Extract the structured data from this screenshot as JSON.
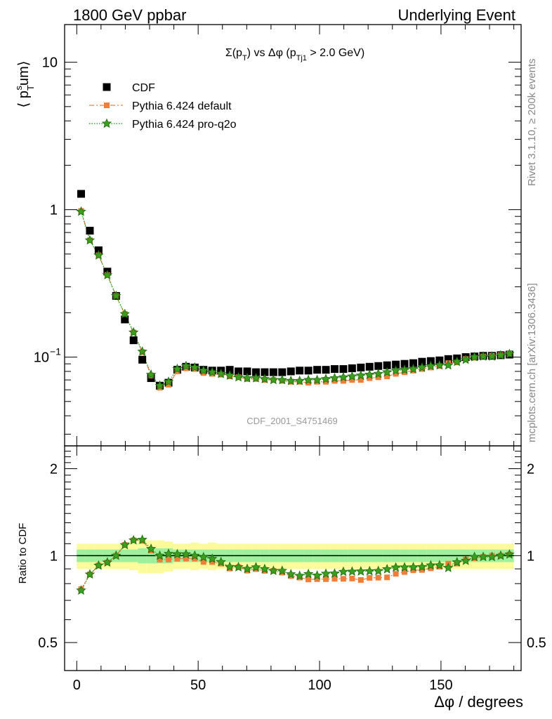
{
  "header": {
    "left": "1800 GeV ppbar",
    "right": "Underlying Event"
  },
  "side_labels": {
    "rivet": "Rivet 3.1.10, ≥ 200k events",
    "mcplots": "mcplots.cern.ch [arXiv:1306.3436]"
  },
  "watermark": "CDF_2001_S4751469",
  "chart_data": {
    "type": "scatter",
    "title": "Σ(pₜ) vs Δφ (pₜⱼ₁ > 2.0 GeV)",
    "title_parts": {
      "a": "Σ(p",
      "a_sub": "T",
      "b": ") vs Δφ (p",
      "b_sub": "Tj1",
      "c": " > 2.0 GeV)"
    },
    "xlabel": "Δφ / degrees",
    "ylabel": "⟨ pₜˢum⟩",
    "ylabel_parts": {
      "open": "⟨ p",
      "sub": "T",
      "sup": "s",
      "rest": "um⟩"
    },
    "ratio_ylabel": "Ratio to CDF",
    "xlim": [
      -5,
      183
    ],
    "ylim": [
      0.025,
      18
    ],
    "yscale": "log",
    "ratio_ylim": [
      0.4,
      2.4
    ],
    "ratio_yscale": "log",
    "x_ticks": [
      0,
      50,
      100,
      150
    ],
    "y_tick_labels": [
      {
        "value": 0.1,
        "base": "10",
        "exp": "−1"
      },
      {
        "value": 1,
        "text": "1"
      },
      {
        "value": 10,
        "text": "10"
      }
    ],
    "ratio_ticks": [
      {
        "value": 0.5,
        "label": "0.5"
      },
      {
        "value": 1,
        "label": "1"
      },
      {
        "value": 2,
        "label": "2"
      }
    ],
    "legend_position": "top-left",
    "x": [
      1.8,
      5.4,
      9.0,
      12.6,
      16.2,
      19.8,
      23.4,
      27.0,
      30.6,
      34.2,
      37.8,
      41.4,
      45.0,
      48.6,
      52.2,
      55.8,
      59.4,
      63.0,
      66.6,
      70.2,
      73.8,
      77.4,
      81.0,
      84.6,
      88.2,
      91.8,
      95.4,
      99.0,
      102.6,
      106.2,
      109.8,
      113.4,
      117.0,
      120.6,
      124.2,
      127.8,
      131.4,
      135.0,
      138.6,
      142.2,
      145.8,
      149.4,
      153.0,
      156.6,
      160.2,
      163.8,
      167.4,
      171.0,
      174.6,
      178.2
    ],
    "series": [
      {
        "name": "CDF",
        "color": "#000000",
        "marker": "square",
        "values": [
          1.28,
          0.72,
          0.53,
          0.38,
          0.26,
          0.18,
          0.13,
          0.096,
          0.072,
          0.064,
          0.067,
          0.082,
          0.086,
          0.085,
          0.082,
          0.081,
          0.081,
          0.082,
          0.08,
          0.08,
          0.079,
          0.079,
          0.079,
          0.079,
          0.08,
          0.081,
          0.081,
          0.082,
          0.082,
          0.083,
          0.083,
          0.084,
          0.085,
          0.086,
          0.087,
          0.088,
          0.089,
          0.09,
          0.091,
          0.093,
          0.094,
          0.095,
          0.097,
          0.098,
          0.1,
          0.101,
          0.102,
          0.102,
          0.103,
          0.104
        ],
        "uncertainty_inner": [
          0.05,
          0.05,
          0.05,
          0.05,
          0.05,
          0.05,
          0.05,
          0.06,
          0.06,
          0.06,
          0.06,
          0.05,
          0.05,
          0.05,
          0.05,
          0.05,
          0.05,
          0.05,
          0.05,
          0.05,
          0.05,
          0.05,
          0.05,
          0.05,
          0.05,
          0.05,
          0.05,
          0.05,
          0.05,
          0.05,
          0.05,
          0.05,
          0.05,
          0.05,
          0.05,
          0.05,
          0.05,
          0.05,
          0.05,
          0.05,
          0.05,
          0.05,
          0.05,
          0.05,
          0.05,
          0.05,
          0.05,
          0.05,
          0.05,
          0.05
        ],
        "uncertainty_outer": [
          0.1,
          0.1,
          0.1,
          0.1,
          0.1,
          0.1,
          0.11,
          0.13,
          0.13,
          0.13,
          0.12,
          0.1,
          0.1,
          0.11,
          0.1,
          0.11,
          0.1,
          0.1,
          0.1,
          0.1,
          0.1,
          0.1,
          0.1,
          0.1,
          0.1,
          0.1,
          0.1,
          0.1,
          0.1,
          0.1,
          0.1,
          0.1,
          0.1,
          0.1,
          0.1,
          0.1,
          0.1,
          0.1,
          0.1,
          0.1,
          0.1,
          0.1,
          0.1,
          0.1,
          0.1,
          0.1,
          0.1,
          0.1,
          0.1,
          0.1
        ]
      },
      {
        "name": "Pythia 6.424 default",
        "color": "#f07e38",
        "marker": "square-small",
        "line": "dashdot",
        "values": [
          0.98,
          0.62,
          0.49,
          0.36,
          0.26,
          0.196,
          0.147,
          0.108,
          0.075,
          0.062,
          0.065,
          0.08,
          0.084,
          0.083,
          0.078,
          0.077,
          0.076,
          0.074,
          0.073,
          0.071,
          0.071,
          0.07,
          0.07,
          0.069,
          0.068,
          0.068,
          0.067,
          0.068,
          0.068,
          0.069,
          0.069,
          0.07,
          0.07,
          0.072,
          0.073,
          0.074,
          0.077,
          0.079,
          0.081,
          0.083,
          0.085,
          0.087,
          0.091,
          0.092,
          0.097,
          0.099,
          0.101,
          0.102,
          0.103,
          0.105
        ]
      },
      {
        "name": "Pythia 6.424 pro-q2o",
        "color": "#109e10",
        "marker": "star",
        "line": "dotted",
        "values": [
          0.97,
          0.62,
          0.49,
          0.36,
          0.26,
          0.196,
          0.147,
          0.109,
          0.076,
          0.064,
          0.068,
          0.083,
          0.087,
          0.085,
          0.081,
          0.079,
          0.077,
          0.075,
          0.073,
          0.072,
          0.072,
          0.071,
          0.07,
          0.07,
          0.069,
          0.069,
          0.07,
          0.07,
          0.071,
          0.072,
          0.073,
          0.074,
          0.075,
          0.076,
          0.077,
          0.079,
          0.081,
          0.082,
          0.083,
          0.085,
          0.087,
          0.088,
          0.088,
          0.093,
          0.096,
          0.1,
          0.101,
          0.101,
          0.103,
          0.105
        ]
      }
    ]
  }
}
